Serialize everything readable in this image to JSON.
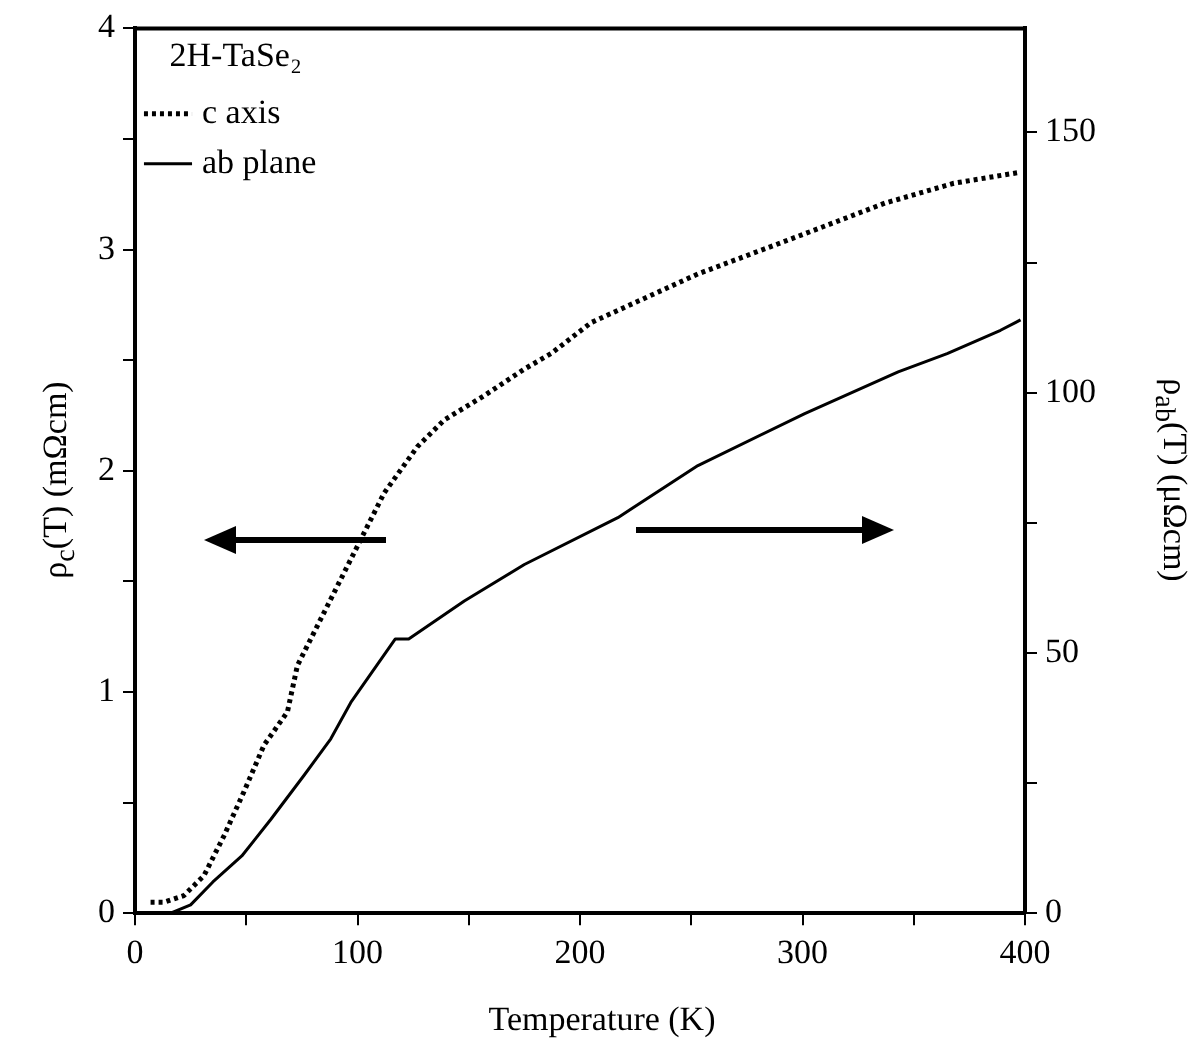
{
  "chart_data": {
    "type": "line",
    "xlabel": "Temperature (K)",
    "ylabel": "ρ$_{c}$(T) (mΩcm)",
    "y2label": "ρ$_{ab}$(T) (μΩcm)",
    "legend_title": "2H-TaSe₂",
    "xlim": [
      0,
      400
    ],
    "xticks": [
      0,
      {
        "value": 50,
        "label": null
      },
      100,
      {
        "value": 150,
        "label": null
      },
      200,
      {
        "value": 250,
        "label": null
      },
      300,
      {
        "value": 350,
        "label": null
      },
      400
    ],
    "ylim": [
      0,
      4
    ],
    "yticks": [
      0,
      {
        "value": 0.5,
        "label": null
      },
      1,
      {
        "value": 1.5,
        "label": null
      },
      2,
      {
        "value": 2.5,
        "label": null
      },
      3,
      {
        "value": 3.5,
        "label": null
      },
      4
    ],
    "y2lim": [
      0,
      170
    ],
    "y2ticks": [
      0,
      {
        "value": 25,
        "label": null
      },
      50,
      {
        "value": 75,
        "label": null
      },
      100,
      {
        "value": 125,
        "label": null
      },
      150
    ],
    "grid": false,
    "legend": "top left",
    "marker": "none",
    "series": [
      {
        "name": "c axis",
        "color": "#000000",
        "line_style": "dotted",
        "x": [
          7,
          13,
          22,
          31,
          40,
          49,
          58,
          68.5,
          73,
          85,
          94,
          103,
          112,
          127,
          139,
          157,
          175,
          187,
          205,
          253,
          298,
          337,
          368,
          398
        ],
        "values": [
          0.05,
          0.05,
          0.08,
          0.17,
          0.35,
          0.55,
          0.76,
          0.91,
          1.12,
          1.36,
          1.54,
          1.72,
          1.9,
          2.11,
          2.23,
          2.34,
          2.46,
          2.53,
          2.67,
          2.89,
          3.06,
          3.21,
          3.3,
          3.35
        ]
      },
      {
        "name": "ab plane",
        "color": "#000000",
        "line_style": "solid",
        "axis": "y2",
        "x": [
          16,
          25,
          35,
          48,
          61,
          76,
          88,
          97,
          117,
          123,
          148,
          175,
          217,
          253,
          301,
          343,
          365,
          389,
          398
        ],
        "values": [
          0,
          1.6,
          6,
          11,
          18,
          26.5,
          33.5,
          40.5,
          52.7,
          52.7,
          60,
          67,
          76,
          86,
          96,
          104,
          107.5,
          112,
          114
        ]
      }
    ]
  }
}
